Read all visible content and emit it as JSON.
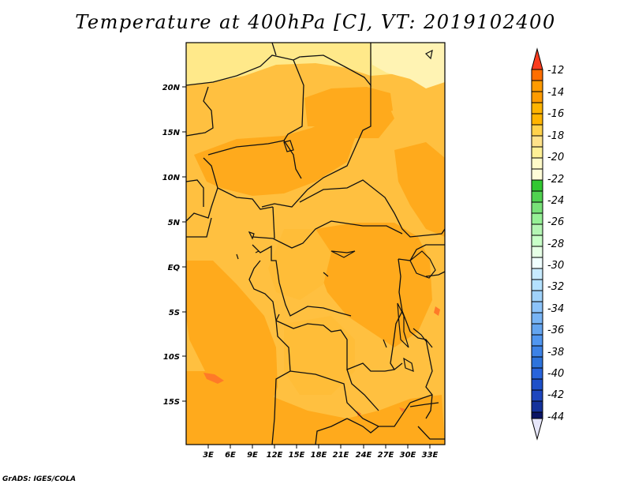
{
  "title": "Temperature at 400hPa [C], VT: 2019102400",
  "credit": "GrADS: IGES/COLA",
  "map": {
    "lat_labels": [
      "20N",
      "15N",
      "10N",
      "5N",
      "EQ",
      "5S",
      "10S",
      "15S"
    ],
    "lon_labels": [
      "3E",
      "6E",
      "9E",
      "12E",
      "15E",
      "18E",
      "21E",
      "24E",
      "27E",
      "30E",
      "33E"
    ],
    "field_colors": {
      "m20_m18": "#ffe98a",
      "m18_m16": "#ffc23f",
      "m16_m14": "#ffaa1c",
      "m14_m12": "#ff8418"
    }
  },
  "colorbar": {
    "labels": [
      "-12",
      "-14",
      "-16",
      "-18",
      "-20",
      "-22",
      "-24",
      "-26",
      "-28",
      "-30",
      "-32",
      "-34",
      "-36",
      "-38",
      "-40",
      "-42",
      "-44"
    ],
    "colors": [
      "#fa3c1e",
      "#ff6e00",
      "#ff9b00",
      "#ffb400",
      "#ffd24b",
      "#fff096",
      "#fffac8",
      "#32c832",
      "#64dc64",
      "#96f096",
      "#c8ffc8",
      "#e6ffff",
      "#b4e6ff",
      "#96d2fa",
      "#78b9fa",
      "#5096f0",
      "#3c82e6",
      "#2864dc",
      "#1e46be",
      "#0a1464",
      "#e6e6fa"
    ]
  }
}
